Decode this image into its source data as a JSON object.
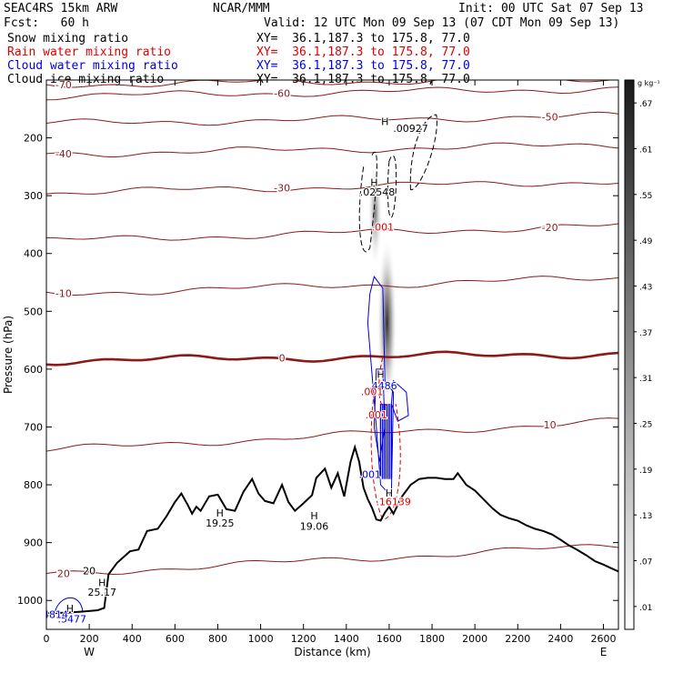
{
  "header": {
    "model": "SEAC4RS 15km ARW",
    "fcst": "Fcst:   60 h",
    "producer": "NCAR/MMM",
    "init": "Init: 00 UTC Sat 07 Sep 13",
    "valid": "Valid: 12 UTC Mon 09 Sep 13 (07 CDT Mon 09 Sep 13)"
  },
  "fields": [
    {
      "label": "Snow mixing ratio",
      "xy": "XY=  36.1,187.3 to 175.8, 77.0",
      "color": "#000000"
    },
    {
      "label": "Rain water mixing ratio",
      "xy": "XY=  36.1,187.3 to 175.8, 77.0",
      "color": "#e00000"
    },
    {
      "label": "Cloud water mixing ratio",
      "xy": "XY=  36.1,187.3 to 175.8, 77.0",
      "color": "#0000e0"
    },
    {
      "label": "Cloud ice mixing ratio",
      "xy": "XY=  36.1,187.3 to 175.8, 77.0",
      "color": "#000000"
    }
  ],
  "chart_data": {
    "type": "contour",
    "xlabel": "Distance (km)",
    "ylabel": "Pressure (hPa)",
    "xlim": [
      0,
      2670
    ],
    "ylim": [
      1050,
      100
    ],
    "x_ticks": [
      0,
      200,
      400,
      600,
      800,
      1000,
      1200,
      1400,
      1600,
      1800,
      2000,
      2200,
      2400,
      2600
    ],
    "y_ticks": [
      200,
      300,
      400,
      500,
      600,
      700,
      800,
      900,
      1000
    ],
    "y_tick_labels": [
      "200",
      "300",
      "400",
      "500",
      "600",
      "700",
      "800",
      "900",
      "1000"
    ],
    "end_labels": {
      "left": "W",
      "right": "E"
    },
    "colorbar": {
      "units": "g kg⁻¹",
      "ticks": [
        ".01",
        ".07",
        ".13",
        ".19",
        ".25",
        ".31",
        ".37",
        ".43",
        ".49",
        ".55",
        ".61",
        ".67"
      ],
      "min": 0,
      "max": 0.7
    },
    "terrain_profile": [
      [
        0,
        1022
      ],
      [
        100,
        1021
      ],
      [
        180,
        1019
      ],
      [
        240,
        1017
      ],
      [
        270,
        1013
      ],
      [
        290,
        955
      ],
      [
        330,
        935
      ],
      [
        390,
        915
      ],
      [
        430,
        912
      ],
      [
        470,
        880
      ],
      [
        520,
        876
      ],
      [
        560,
        855
      ],
      [
        600,
        830
      ],
      [
        630,
        815
      ],
      [
        660,
        835
      ],
      [
        680,
        850
      ],
      [
        700,
        838
      ],
      [
        720,
        845
      ],
      [
        760,
        820
      ],
      [
        800,
        817
      ],
      [
        840,
        842
      ],
      [
        880,
        845
      ],
      [
        920,
        812
      ],
      [
        960,
        790
      ],
      [
        990,
        815
      ],
      [
        1020,
        828
      ],
      [
        1060,
        832
      ],
      [
        1100,
        800
      ],
      [
        1130,
        830
      ],
      [
        1160,
        845
      ],
      [
        1200,
        832
      ],
      [
        1240,
        818
      ],
      [
        1260,
        788
      ],
      [
        1300,
        772
      ],
      [
        1330,
        805
      ],
      [
        1360,
        780
      ],
      [
        1390,
        820
      ],
      [
        1420,
        760
      ],
      [
        1440,
        735
      ],
      [
        1460,
        760
      ],
      [
        1480,
        805
      ],
      [
        1500,
        825
      ],
      [
        1520,
        840
      ],
      [
        1540,
        860
      ],
      [
        1560,
        862
      ],
      [
        1580,
        848
      ],
      [
        1600,
        838
      ],
      [
        1620,
        850
      ],
      [
        1660,
        820
      ],
      [
        1700,
        800
      ],
      [
        1740,
        790
      ],
      [
        1780,
        788
      ],
      [
        1820,
        788
      ],
      [
        1860,
        790
      ],
      [
        1900,
        790
      ],
      [
        1920,
        780
      ],
      [
        1960,
        800
      ],
      [
        2000,
        810
      ],
      [
        2040,
        825
      ],
      [
        2080,
        840
      ],
      [
        2120,
        852
      ],
      [
        2160,
        858
      ],
      [
        2200,
        862
      ],
      [
        2240,
        870
      ],
      [
        2280,
        876
      ],
      [
        2320,
        880
      ],
      [
        2360,
        886
      ],
      [
        2400,
        895
      ],
      [
        2440,
        905
      ],
      [
        2480,
        913
      ],
      [
        2520,
        922
      ],
      [
        2560,
        932
      ],
      [
        2600,
        938
      ],
      [
        2640,
        945
      ],
      [
        2670,
        950
      ]
    ],
    "temperature_contours": [
      {
        "value": -70,
        "label": "-70",
        "y_left": 108,
        "y_right": 98
      },
      {
        "value": -60,
        "label": "-60",
        "y_left": 128,
        "y_right": 115
      },
      {
        "value": -50,
        "label": "-50",
        "y_left": 175,
        "y_right": 162
      },
      {
        "value": -40,
        "label": "-40",
        "y_left": 228,
        "y_right": 212
      },
      {
        "value": -30,
        "label": "-30",
        "y_left": 295,
        "y_right": 275
      },
      {
        "value": -20,
        "label": "-20",
        "y_left": 378,
        "y_right": 352
      },
      {
        "value": -10,
        "label": "-10",
        "y_left": 470,
        "y_right": 442
      },
      {
        "value": 0,
        "label": "0",
        "y_left": 586,
        "y_right": 573
      },
      {
        "value": 10,
        "label": "10",
        "y_left": 740,
        "y_right": 690
      },
      {
        "value": 20,
        "label": "20",
        "y_left": 955,
        "y_right": 905
      }
    ],
    "annotations": [
      {
        "text": "H",
        "x": 1580,
        "y": 178
      },
      {
        "text": ".00927",
        "x": 1700,
        "y": 190
      },
      {
        "text": "H",
        "x": 1530,
        "y": 283
      },
      {
        "text": ".02548",
        "x": 1545,
        "y": 300
      },
      {
        "text": ".001",
        "x": 1570,
        "y": 360
      },
      {
        "text": "H",
        "x": 1560,
        "y": 615
      },
      {
        "text": ".4486",
        "x": 1570,
        "y": 635
      },
      {
        "text": ".001",
        "x": 1520,
        "y": 645
      },
      {
        "text": ".001",
        "x": 1540,
        "y": 685
      },
      {
        "text": ".001",
        "x": 1510,
        "y": 788
      },
      {
        "text": "H",
        "x": 1600,
        "y": 820
      },
      {
        "text": ".16139",
        "x": 1620,
        "y": 835
      },
      {
        "text": "H",
        "x": 810,
        "y": 855
      },
      {
        "text": "19.25",
        "x": 810,
        "y": 872
      },
      {
        "text": "H",
        "x": 1250,
        "y": 860
      },
      {
        "text": "19.06",
        "x": 1250,
        "y": 878
      },
      {
        "text": "H",
        "x": 260,
        "y": 975
      },
      {
        "text": "25.17",
        "x": 260,
        "y": 992
      },
      {
        "text": "H",
        "x": 110,
        "y": 1020
      },
      {
        "text": ".5477",
        "x": 120,
        "y": 1038
      },
      {
        "text": ".4814",
        "x": 35,
        "y": 1030
      },
      {
        "text": "20",
        "x": 200,
        "y": 955
      }
    ]
  }
}
